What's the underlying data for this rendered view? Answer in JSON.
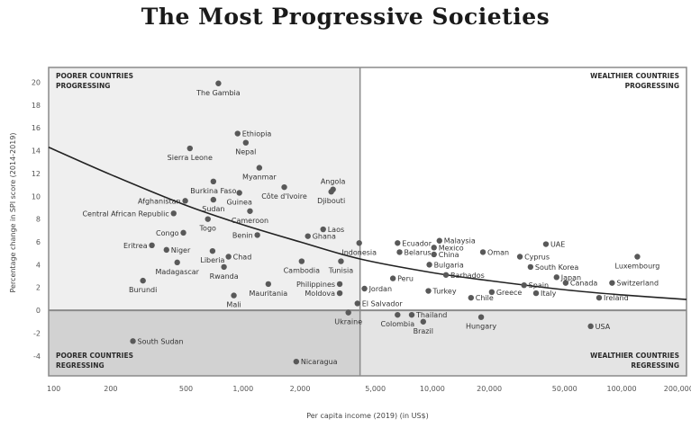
{
  "chart_data": {
    "type": "scatter",
    "title": "The Most Progressive Societies",
    "xlabel": "Per capita income (2019) (in US$)",
    "ylabel": "Percentage change in SPI score (2014-2019)",
    "xscale": "log",
    "xlim": [
      94,
      220000
    ],
    "ylim": [
      -5.75,
      21.3
    ],
    "x_ticks": [
      100,
      200,
      500,
      1000,
      2000,
      5000,
      10000,
      20000,
      50000,
      100000,
      200000
    ],
    "x_tick_labels": [
      "100",
      "200",
      "500",
      "1,000",
      "2,000",
      "5,000",
      "10,000",
      "20,000",
      "50,000",
      "100,000",
      "200,000"
    ],
    "y_ticks": [
      -4,
      -2,
      0,
      2,
      4,
      6,
      8,
      10,
      12,
      14,
      16,
      18,
      20
    ],
    "y_tick_labels": [
      "-4",
      "-2",
      "0",
      "2",
      "4",
      "6",
      "8",
      "10",
      "12",
      "14",
      "16",
      "18",
      "20"
    ],
    "grid": false,
    "income_divider": 4150,
    "quadrants": {
      "top_left": [
        "POORER COUNTRIES",
        "PROGRESSING"
      ],
      "top_right": [
        "WEALTHIER COUNTRIES",
        "PROGRESSING"
      ],
      "bottom_left": [
        "POORER COUNTRIES",
        "REGRESSING"
      ],
      "bottom_right": [
        "WEALTHIER COUNTRIES",
        "REGRESSING"
      ]
    },
    "colors": {
      "point": "#595959",
      "trend": "#222222",
      "progress_poor_bg": "#efefef",
      "progress_rich_bg": "#ffffff",
      "regress_poor_bg": "#d2d2d2",
      "regress_rich_bg": "#e4e4e4",
      "border": "#8a8a8a"
    },
    "trend_line": [
      {
        "x": 94,
        "y": 14.3
      },
      {
        "x": 200,
        "y": 11.9
      },
      {
        "x": 500,
        "y": 9.2
      },
      {
        "x": 1000,
        "y": 7.5
      },
      {
        "x": 2000,
        "y": 6.0
      },
      {
        "x": 4150,
        "y": 4.5
      },
      {
        "x": 10000,
        "y": 3.3
      },
      {
        "x": 20000,
        "y": 2.6
      },
      {
        "x": 50000,
        "y": 1.8
      },
      {
        "x": 100000,
        "y": 1.35
      },
      {
        "x": 220000,
        "y": 0.95
      }
    ],
    "points": [
      {
        "name": "The Gambia",
        "x": 741,
        "y": 19.9,
        "pos": "below"
      },
      {
        "name": "Ethiopia",
        "x": 936,
        "y": 15.5,
        "pos": "right"
      },
      {
        "name": "Nepal",
        "x": 1034,
        "y": 14.7,
        "pos": "below"
      },
      {
        "name": "Sierra Leone",
        "x": 524,
        "y": 14.2,
        "pos": "below"
      },
      {
        "name": "Myanmar",
        "x": 1219,
        "y": 12.5,
        "pos": "below"
      },
      {
        "name": "Burkina Faso",
        "x": 697,
        "y": 11.3,
        "pos": "below"
      },
      {
        "name": "Angola",
        "x": 2987,
        "y": 10.6,
        "pos": "above"
      },
      {
        "name": "Djibouti",
        "x": 2923,
        "y": 10.4,
        "pos": "below"
      },
      {
        "name": "Côte d'Ivoire",
        "x": 1651,
        "y": 10.8,
        "pos": "below"
      },
      {
        "name": "Guinea",
        "x": 956,
        "y": 10.3,
        "pos": "below"
      },
      {
        "name": "Afghanistan",
        "x": 495,
        "y": 9.6,
        "pos": "left"
      },
      {
        "name": "Sudan",
        "x": 697,
        "y": 9.7,
        "pos": "below"
      },
      {
        "name": "Cameroon",
        "x": 1088,
        "y": 8.7,
        "pos": "below"
      },
      {
        "name": "Central African Republic",
        "x": 430,
        "y": 8.5,
        "pos": "left"
      },
      {
        "name": "Togo",
        "x": 652,
        "y": 8.0,
        "pos": "below"
      },
      {
        "name": "Laos",
        "x": 2650,
        "y": 7.1,
        "pos": "right"
      },
      {
        "name": "Ghana",
        "x": 2200,
        "y": 6.5,
        "pos": "right"
      },
      {
        "name": "Congo",
        "x": 484,
        "y": 6.8,
        "pos": "left"
      },
      {
        "name": "Benin",
        "x": 1190,
        "y": 6.6,
        "pos": "left"
      },
      {
        "name": "Indonesia",
        "x": 4107,
        "y": 5.9,
        "pos": "below"
      },
      {
        "name": "Eritrea",
        "x": 330,
        "y": 5.7,
        "pos": "left"
      },
      {
        "name": "Niger",
        "x": 394,
        "y": 5.3,
        "pos": "right"
      },
      {
        "name": "Liberia",
        "x": 690,
        "y": 5.2,
        "pos": "below"
      },
      {
        "name": "Chad",
        "x": 838,
        "y": 4.7,
        "pos": "right"
      },
      {
        "name": "Madagascar",
        "x": 449,
        "y": 4.2,
        "pos": "below"
      },
      {
        "name": "Cambodia",
        "x": 2040,
        "y": 4.3,
        "pos": "below"
      },
      {
        "name": "Tunisia",
        "x": 3290,
        "y": 4.3,
        "pos": "below"
      },
      {
        "name": "Rwanda",
        "x": 793,
        "y": 3.8,
        "pos": "below"
      },
      {
        "name": "Burundi",
        "x": 296,
        "y": 2.6,
        "pos": "below"
      },
      {
        "name": "Mauritania",
        "x": 1360,
        "y": 2.3,
        "pos": "below"
      },
      {
        "name": "Philippines",
        "x": 3240,
        "y": 2.3,
        "pos": "left"
      },
      {
        "name": "Moldova",
        "x": 3240,
        "y": 1.5,
        "pos": "left"
      },
      {
        "name": "Mali",
        "x": 894,
        "y": 1.3,
        "pos": "below"
      },
      {
        "name": "Jordan",
        "x": 4380,
        "y": 1.9,
        "pos": "right"
      },
      {
        "name": "El Salvador",
        "x": 4020,
        "y": 0.6,
        "pos": "right"
      },
      {
        "name": "Ukraine",
        "x": 3600,
        "y": -0.2,
        "pos": "below"
      },
      {
        "name": "Peru",
        "x": 6190,
        "y": 2.8,
        "pos": "right"
      },
      {
        "name": "Ecuador",
        "x": 6550,
        "y": 5.9,
        "pos": "right"
      },
      {
        "name": "Belarus",
        "x": 6710,
        "y": 5.1,
        "pos": "right"
      },
      {
        "name": "Malaysia",
        "x": 10900,
        "y": 6.1,
        "pos": "right"
      },
      {
        "name": "Mexico",
        "x": 10200,
        "y": 5.5,
        "pos": "right"
      },
      {
        "name": "China",
        "x": 10200,
        "y": 4.9,
        "pos": "right"
      },
      {
        "name": "Bulgaria",
        "x": 9640,
        "y": 4.0,
        "pos": "right"
      },
      {
        "name": "Barbados",
        "x": 11800,
        "y": 3.1,
        "pos": "right"
      },
      {
        "name": "Turkey",
        "x": 9530,
        "y": 1.7,
        "pos": "right"
      },
      {
        "name": "Oman",
        "x": 18500,
        "y": 5.1,
        "pos": "right"
      },
      {
        "name": "Chile",
        "x": 16000,
        "y": 1.1,
        "pos": "right"
      },
      {
        "name": "Greece",
        "x": 20600,
        "y": 1.6,
        "pos": "right"
      },
      {
        "name": "Colombia",
        "x": 6550,
        "y": -0.4,
        "pos": "below"
      },
      {
        "name": "Thailand",
        "x": 7780,
        "y": -0.4,
        "pos": "right"
      },
      {
        "name": "Brazil",
        "x": 8950,
        "y": -1.0,
        "pos": "below"
      },
      {
        "name": "Hungary",
        "x": 18100,
        "y": -0.6,
        "pos": "below"
      },
      {
        "name": "UAE",
        "x": 39800,
        "y": 5.8,
        "pos": "right"
      },
      {
        "name": "Cyprus",
        "x": 29000,
        "y": 4.7,
        "pos": "right"
      },
      {
        "name": "South Korea",
        "x": 33000,
        "y": 3.8,
        "pos": "right"
      },
      {
        "name": "Japan",
        "x": 45300,
        "y": 2.9,
        "pos": "right"
      },
      {
        "name": "Spain",
        "x": 30500,
        "y": 2.2,
        "pos": "right"
      },
      {
        "name": "Canada",
        "x": 50600,
        "y": 2.4,
        "pos": "right"
      },
      {
        "name": "Italy",
        "x": 35300,
        "y": 1.5,
        "pos": "right"
      },
      {
        "name": "Switzerland",
        "x": 89000,
        "y": 2.4,
        "pos": "right"
      },
      {
        "name": "Luxembourg",
        "x": 121000,
        "y": 4.7,
        "pos": "below"
      },
      {
        "name": "Ireland",
        "x": 76000,
        "y": 1.1,
        "pos": "right"
      },
      {
        "name": "USA",
        "x": 68600,
        "y": -1.4,
        "pos": "right"
      },
      {
        "name": "South Sudan",
        "x": 262,
        "y": -2.7,
        "pos": "right"
      },
      {
        "name": "Nicaragua",
        "x": 1910,
        "y": -4.5,
        "pos": "right"
      }
    ]
  }
}
